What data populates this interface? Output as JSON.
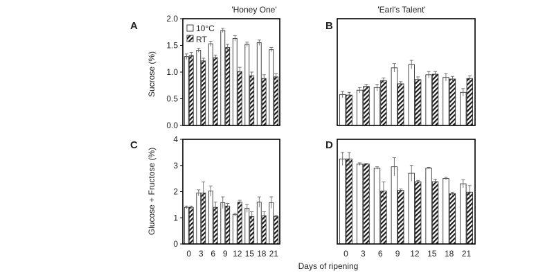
{
  "chart_data": [
    {
      "panel": "A",
      "type": "bar",
      "title": "'Honey One'",
      "ylabel": "Sucrose (%)",
      "xlabel": "",
      "ylim": [
        0,
        2.0
      ],
      "yticks": [
        "0.0",
        "0.5",
        "1.0",
        "1.5",
        "2.0"
      ],
      "categories": [
        "0",
        "3",
        "6",
        "9",
        "12",
        "15",
        "18",
        "21"
      ],
      "show_xticks": false,
      "legend": true,
      "series": [
        {
          "name": "10°C",
          "values": [
            1.29,
            1.41,
            1.53,
            1.78,
            1.63,
            1.52,
            1.55,
            1.42
          ],
          "errors": [
            0.05,
            0.04,
            0.05,
            0.04,
            0.05,
            0.04,
            0.05,
            0.04
          ]
        },
        {
          "name": "RT",
          "values": [
            1.31,
            1.21,
            1.27,
            1.46,
            1.01,
            0.93,
            0.88,
            0.91
          ],
          "errors": [
            0.06,
            0.05,
            0.05,
            0.06,
            0.08,
            0.07,
            0.07,
            0.06
          ]
        }
      ]
    },
    {
      "panel": "B",
      "type": "bar",
      "title": "'Earl's Talent'",
      "ylabel": "",
      "xlabel": "",
      "ylim": [
        0,
        2.0
      ],
      "yticks": [],
      "categories": [
        "0",
        "3",
        "6",
        "9",
        "12",
        "15",
        "18",
        "21"
      ],
      "show_xticks": false,
      "legend": false,
      "series": [
        {
          "name": "10°C",
          "values": [
            0.58,
            0.66,
            0.71,
            1.08,
            1.14,
            0.95,
            0.9,
            0.62
          ],
          "errors": [
            0.06,
            0.05,
            0.06,
            0.08,
            0.08,
            0.06,
            0.07,
            0.07
          ]
        },
        {
          "name": "RT",
          "values": [
            0.57,
            0.73,
            0.84,
            0.78,
            0.86,
            0.96,
            0.87,
            0.88
          ],
          "errors": [
            0.05,
            0.04,
            0.05,
            0.04,
            0.05,
            0.05,
            0.05,
            0.05
          ]
        }
      ]
    },
    {
      "panel": "C",
      "type": "bar",
      "title": "",
      "ylabel": "Glucose + Fructose (%)",
      "xlabel": "",
      "ylim": [
        0,
        4
      ],
      "yticks": [
        "0",
        "1",
        "2",
        "3",
        "4"
      ],
      "categories": [
        "0",
        "3",
        "6",
        "9",
        "12",
        "15",
        "18",
        "21"
      ],
      "show_xticks": true,
      "legend": false,
      "series": [
        {
          "name": "10°C",
          "values": [
            1.4,
            1.95,
            2.02,
            1.58,
            1.12,
            1.36,
            1.6,
            1.58
          ],
          "errors": [
            0.05,
            0.12,
            0.2,
            0.22,
            0.05,
            0.15,
            0.2,
            0.22
          ]
        },
        {
          "name": "RT",
          "values": [
            1.4,
            1.95,
            1.4,
            1.45,
            1.6,
            1.05,
            1.08,
            1.05
          ],
          "errors": [
            0.05,
            0.42,
            0.2,
            0.1,
            0.07,
            0.18,
            0.15,
            0.05
          ]
        }
      ]
    },
    {
      "panel": "D",
      "type": "bar",
      "title": "",
      "ylabel": "",
      "xlabel": "",
      "ylim": [
        0,
        4
      ],
      "yticks": [],
      "categories": [
        "0",
        "3",
        "6",
        "9",
        "12",
        "15",
        "18",
        "21"
      ],
      "show_xticks": true,
      "legend": false,
      "series": [
        {
          "name": "10°C",
          "values": [
            3.25,
            3.05,
            2.9,
            2.95,
            2.7,
            2.9,
            2.5,
            2.3
          ],
          "errors": [
            0.25,
            0.05,
            0.05,
            0.35,
            0.3,
            0.03,
            0.05,
            0.15
          ]
        },
        {
          "name": "RT",
          "values": [
            3.25,
            3.05,
            2.02,
            2.05,
            2.38,
            2.38,
            1.92,
            1.98
          ],
          "errors": [
            0.25,
            0.03,
            0.35,
            0.05,
            0.05,
            0.1,
            0.05,
            0.25
          ]
        }
      ]
    }
  ],
  "shared_xlabel": "Days of ripening"
}
